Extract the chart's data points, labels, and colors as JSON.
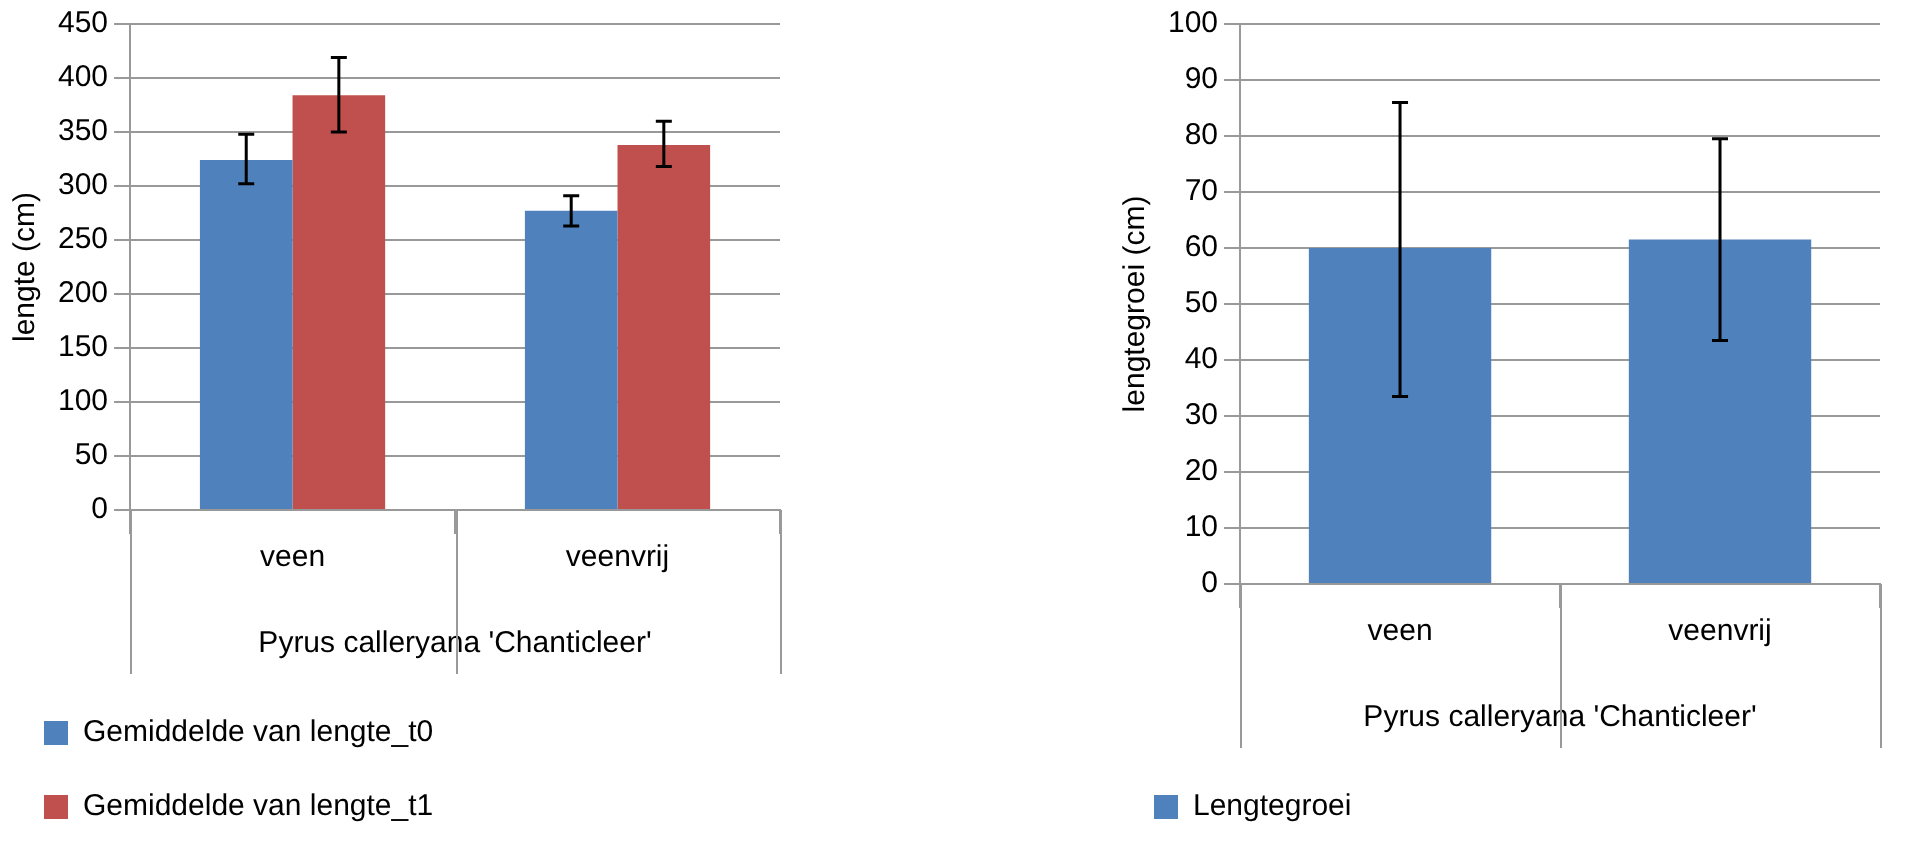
{
  "chart_data": [
    {
      "type": "bar",
      "ylabel": "lengte (cm)",
      "xlabel": "Pyrus calleryana 'Chanticleer'",
      "categories": [
        "veen",
        "veenvrij"
      ],
      "series": [
        {
          "name": "Gemiddelde van lengte_t0",
          "color": "#4f81bd",
          "values": [
            324,
            277
          ],
          "errors": [
            [
              302,
              348
            ],
            [
              263,
              291
            ]
          ]
        },
        {
          "name": "Gemiddelde van lengte_t1",
          "color": "#c0504d",
          "values": [
            384,
            338
          ],
          "errors": [
            [
              350,
              419
            ],
            [
              318,
              360
            ]
          ]
        }
      ],
      "ylim": [
        0,
        450
      ],
      "yticks": [
        0,
        50,
        100,
        150,
        200,
        250,
        300,
        350,
        400,
        450
      ],
      "grid": "y",
      "legend": "bottom"
    },
    {
      "type": "bar",
      "ylabel": "lengtegroei (cm)",
      "xlabel": "Pyrus calleryana 'Chanticleer'",
      "categories": [
        "veen",
        "veenvrij"
      ],
      "series": [
        {
          "name": "Lengtegroei",
          "color": "#4f81bd",
          "values": [
            60,
            61.5
          ],
          "errors": [
            [
              33.5,
              86
            ],
            [
              43.5,
              79.5
            ]
          ]
        }
      ],
      "ylim": [
        0,
        100
      ],
      "yticks": [
        0,
        10,
        20,
        30,
        40,
        50,
        60,
        70,
        80,
        90,
        100
      ],
      "grid": "y",
      "legend": "bottom"
    }
  ]
}
